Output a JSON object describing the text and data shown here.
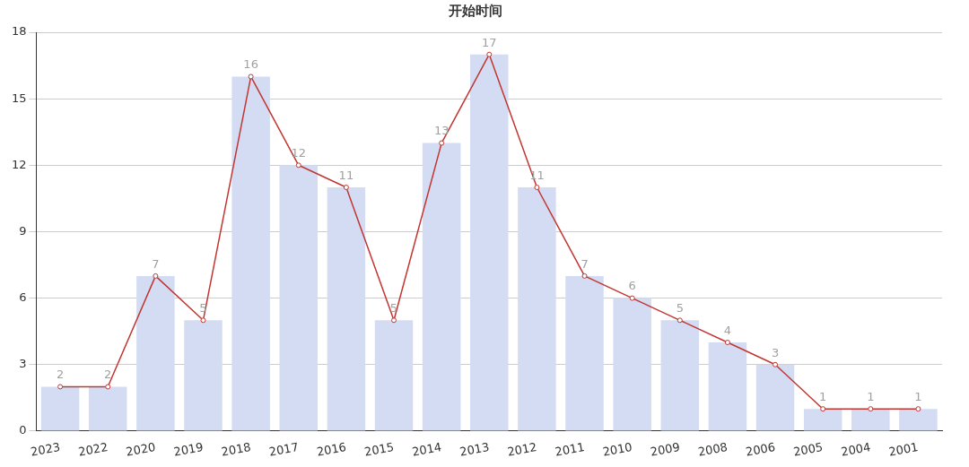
{
  "chart_data": {
    "type": "bar",
    "title": "开始时间",
    "categories": [
      "2023",
      "2022",
      "2020",
      "2019",
      "2018",
      "2017",
      "2016",
      "2015",
      "2014",
      "2013",
      "2012",
      "2011",
      "2010",
      "2009",
      "2008",
      "2006",
      "2005",
      "2004",
      "2001"
    ],
    "series": [
      {
        "color": "#d3dcf2",
        "values": [
          2,
          2,
          7,
          5,
          16,
          12,
          11,
          5,
          13,
          17,
          11,
          7,
          6,
          5,
          4,
          3,
          1,
          1,
          1
        ]
      },
      {
        "type": "line",
        "color": "#c23531",
        "values": [
          2,
          2,
          7,
          5,
          16,
          12,
          11,
          5,
          13,
          17,
          11,
          7,
          6,
          5,
          4,
          3,
          1,
          1,
          1
        ],
        "value_labels": [
          "2",
          "2",
          "7",
          "5",
          "16",
          "12",
          "11",
          "5",
          "13",
          "17",
          "11",
          "7",
          "6",
          "5",
          "4",
          "3",
          "1",
          "1",
          "1"
        ]
      }
    ],
    "ylim": [
      0,
      18
    ],
    "yticks": [
      0,
      3,
      6,
      9,
      12,
      15,
      18
    ],
    "grid": "y",
    "legend": false,
    "marker": "circle"
  }
}
